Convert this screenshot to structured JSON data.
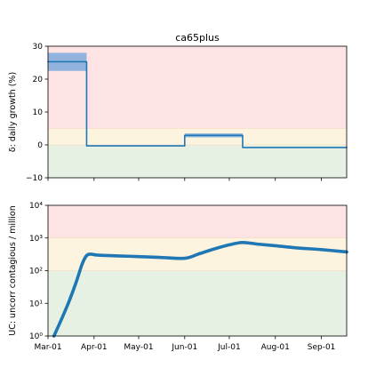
{
  "colors": {
    "line": "#1f77b4",
    "band_fill": "#6fa3de",
    "zone_red": "#fde3e3",
    "zone_yellow": "#fdf4e0",
    "zone_green": "#e6f1e3"
  },
  "chart_data": [
    {
      "type": "line",
      "title": "ca65plus",
      "ylabel": "δ: daily growth (%)",
      "xlabel": "",
      "x_type": "date",
      "xlim": [
        "2020-03-01",
        "2020-09-18"
      ],
      "ylim": [
        -10,
        30
      ],
      "y_scale": "linear",
      "yticks": [
        -10,
        0,
        10,
        20,
        30
      ],
      "ytick_labels": [
        "−10",
        "0",
        "10",
        "20",
        "30"
      ],
      "zones": [
        {
          "from": -10,
          "to": 0,
          "color": "green"
        },
        {
          "from": 0,
          "to": 5,
          "color": "yellow"
        },
        {
          "from": 5,
          "to": 30,
          "color": "red"
        }
      ],
      "bands": [
        {
          "x": [
            "2020-03-01",
            "2020-03-27"
          ],
          "lower": 22.5,
          "upper": 28
        },
        {
          "x": [
            "2020-06-01",
            "2020-07-10"
          ],
          "lower": 2.3,
          "upper": 3.5
        }
      ],
      "series": [
        {
          "style": "step",
          "points": [
            {
              "x": "2020-03-01",
              "y": 25.3
            },
            {
              "x": "2020-03-27",
              "y": 25.3
            },
            {
              "x": "2020-03-27",
              "y": -0.3
            },
            {
              "x": "2020-06-01",
              "y": -0.3
            },
            {
              "x": "2020-06-01",
              "y": 2.9
            },
            {
              "x": "2020-07-10",
              "y": 2.9
            },
            {
              "x": "2020-07-10",
              "y": -0.8
            },
            {
              "x": "2020-09-18",
              "y": -0.8
            }
          ]
        }
      ],
      "grid": false,
      "legend": "none"
    },
    {
      "type": "line",
      "title": "",
      "ylabel": "UC: uncorr contagious / million",
      "xlabel": "",
      "x_type": "date",
      "xlim": [
        "2020-03-01",
        "2020-09-18"
      ],
      "ylim": [
        1,
        10000
      ],
      "y_scale": "log",
      "yticks": [
        1,
        10,
        100,
        1000,
        10000
      ],
      "ytick_labels": [
        "10⁰",
        "10¹",
        "10²",
        "10³",
        "10⁴"
      ],
      "zones": [
        {
          "from": 1,
          "to": 100,
          "color": "green"
        },
        {
          "from": 100,
          "to": 1000,
          "color": "yellow"
        },
        {
          "from": 1000,
          "to": 10000,
          "color": "red"
        }
      ],
      "series": [
        {
          "style": "smooth",
          "points": [
            {
              "x": "2020-03-05",
              "y": 1
            },
            {
              "x": "2020-03-10",
              "y": 3.2
            },
            {
              "x": "2020-03-15",
              "y": 11
            },
            {
              "x": "2020-03-20",
              "y": 45
            },
            {
              "x": "2020-03-24",
              "y": 160
            },
            {
              "x": "2020-03-27",
              "y": 290
            },
            {
              "x": "2020-03-30",
              "y": 320
            },
            {
              "x": "2020-04-03",
              "y": 300
            },
            {
              "x": "2020-04-15",
              "y": 285
            },
            {
              "x": "2020-05-01",
              "y": 270
            },
            {
              "x": "2020-05-15",
              "y": 255
            },
            {
              "x": "2020-06-01",
              "y": 240
            },
            {
              "x": "2020-06-10",
              "y": 320
            },
            {
              "x": "2020-06-20",
              "y": 450
            },
            {
              "x": "2020-07-01",
              "y": 620
            },
            {
              "x": "2020-07-10",
              "y": 730
            },
            {
              "x": "2020-07-20",
              "y": 650
            },
            {
              "x": "2020-08-01",
              "y": 580
            },
            {
              "x": "2020-08-15",
              "y": 500
            },
            {
              "x": "2020-09-01",
              "y": 440
            },
            {
              "x": "2020-09-18",
              "y": 375
            }
          ]
        }
      ],
      "grid": false,
      "legend": "none"
    }
  ],
  "x_ticks": [
    {
      "date": "2020-03-01",
      "label": "Mar-01"
    },
    {
      "date": "2020-04-01",
      "label": "Apr-01"
    },
    {
      "date": "2020-05-01",
      "label": "May-01"
    },
    {
      "date": "2020-06-01",
      "label": "Jun-01"
    },
    {
      "date": "2020-07-01",
      "label": "Jul-01"
    },
    {
      "date": "2020-08-01",
      "label": "Aug-01"
    },
    {
      "date": "2020-09-01",
      "label": "Sep-01"
    }
  ]
}
